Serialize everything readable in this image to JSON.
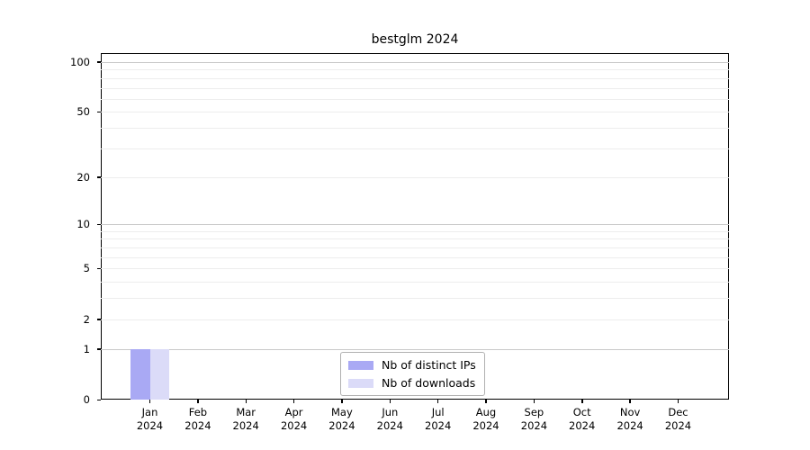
{
  "chart_data": {
    "type": "bar",
    "title": "bestglm 2024",
    "categories": [
      "Jan 2024",
      "Feb 2024",
      "Mar 2024",
      "Apr 2024",
      "May 2024",
      "Jun 2024",
      "Jul 2024",
      "Aug 2024",
      "Sep 2024",
      "Oct 2024",
      "Nov 2024",
      "Dec 2024"
    ],
    "series": [
      {
        "name": "Nb of distinct IPs",
        "color": "#a9a9f4",
        "values": [
          1,
          0,
          0,
          0,
          0,
          0,
          0,
          0,
          0,
          0,
          0,
          0
        ]
      },
      {
        "name": "Nb of downloads",
        "color": "#dbdbf8",
        "values": [
          1,
          0,
          0,
          0,
          0,
          0,
          0,
          0,
          0,
          0,
          0,
          0
        ]
      }
    ],
    "xlabel": "",
    "ylabel": "",
    "yscale": "log10(value+1)",
    "ylim": [
      0,
      113
    ],
    "ytick_values": [
      100,
      50,
      20,
      10,
      5,
      2,
      1,
      0
    ],
    "ytick_labels": [
      "100",
      "50",
      "20",
      "10",
      "5",
      "2",
      "1",
      "0"
    ],
    "major_grid_values": [
      1,
      10,
      100
    ],
    "minor_grid_values": [
      2,
      3,
      4,
      5,
      6,
      7,
      8,
      9,
      20,
      30,
      40,
      50,
      60,
      70,
      80,
      90
    ],
    "grid": "horizontal",
    "legend_position": "bottom-center",
    "colors": {
      "major_grid": "#c9c9c9",
      "minor_grid": "#ededed",
      "spine": "#000000",
      "background": "#ffffff"
    }
  }
}
